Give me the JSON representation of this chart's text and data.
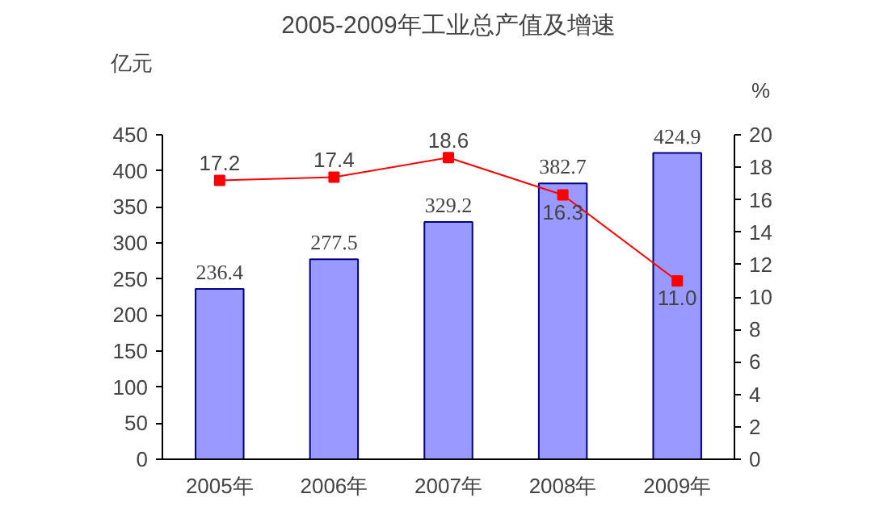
{
  "chart_data": {
    "type": "bar",
    "title": "2005-2009年工业总产值及增速",
    "ylabel": "亿元",
    "y2label": "%",
    "categories": [
      "2005年",
      "2006年",
      "2007年",
      "2008年",
      "2009年"
    ],
    "series": [
      {
        "color": "#9999ff",
        "values": [
          236.4,
          277.5,
          329.2,
          382.7,
          424.9
        ]
      },
      {
        "type": "line",
        "axis": "y2",
        "color": "#ff0000",
        "marker": "square",
        "values": [
          17.2,
          17.4,
          18.6,
          16.3,
          11.0
        ],
        "value_labels": [
          "17.2",
          "17.4",
          "18.6",
          "16.3",
          "11.0"
        ]
      }
    ],
    "ylim": [
      0,
      450
    ],
    "yticks": [
      0,
      50,
      100,
      150,
      200,
      250,
      300,
      350,
      400,
      450
    ],
    "y2lim": [
      0,
      20
    ],
    "y2ticks": [
      0,
      2,
      4,
      6,
      8,
      10,
      12,
      14,
      16,
      18,
      20
    ],
    "data_labels": true,
    "grid": false
  }
}
